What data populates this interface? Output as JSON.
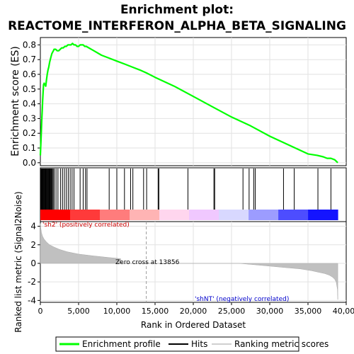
{
  "chart_data": [
    {
      "type": "line",
      "title": "Enrichment plot:",
      "subtitle": "REACTOME_INTERFERON_ALPHA_BETA_SIGNALING",
      "ylabel": "Enrichment score (ES)",
      "xlim": [
        0,
        40000
      ],
      "ylim": [
        -0.02,
        0.85
      ],
      "yticks": [
        0.0,
        0.1,
        0.2,
        0.3,
        0.4,
        0.5,
        0.6,
        0.7,
        0.8
      ],
      "grid": true,
      "series": [
        {
          "name": "Enrichment profile",
          "color": "#00ff00",
          "x": [
            0,
            60,
            120,
            180,
            240,
            300,
            360,
            420,
            500,
            600,
            700,
            800,
            900,
            1000,
            1100,
            1200,
            1300,
            1400,
            1500,
            1600,
            1700,
            1800,
            2000,
            2200,
            2400,
            2600,
            2800,
            3000,
            3200,
            3400,
            3600,
            3800,
            4000,
            4200,
            4400,
            4600,
            4800,
            5000,
            5200,
            5400,
            5600,
            5800,
            6000,
            7000,
            8000,
            9000,
            10000,
            11000,
            12000,
            13000,
            13856,
            15000,
            17500,
            20000,
            22500,
            25000,
            27500,
            30000,
            32500,
            35000,
            36200,
            37000,
            37500,
            38000,
            38500,
            38900
          ],
          "values": [
            0.05,
            0.12,
            0.2,
            0.28,
            0.35,
            0.42,
            0.48,
            0.53,
            0.54,
            0.53,
            0.52,
            0.56,
            0.6,
            0.63,
            0.65,
            0.68,
            0.7,
            0.72,
            0.74,
            0.75,
            0.76,
            0.77,
            0.77,
            0.76,
            0.76,
            0.77,
            0.78,
            0.78,
            0.79,
            0.79,
            0.8,
            0.8,
            0.8,
            0.81,
            0.8,
            0.8,
            0.79,
            0.79,
            0.8,
            0.8,
            0.8,
            0.79,
            0.79,
            0.76,
            0.73,
            0.71,
            0.69,
            0.67,
            0.65,
            0.63,
            0.61,
            0.58,
            0.52,
            0.45,
            0.38,
            0.31,
            0.25,
            0.18,
            0.12,
            0.06,
            0.05,
            0.04,
            0.03,
            0.03,
            0.02,
            0.0
          ]
        }
      ]
    },
    {
      "type": "hits",
      "hits_label": "Hits",
      "positions": [
        80,
        150,
        200,
        260,
        330,
        400,
        470,
        560,
        650,
        720,
        800,
        880,
        960,
        1050,
        1120,
        1200,
        1290,
        1380,
        1480,
        1560,
        1680,
        1820,
        2050,
        2300,
        2650,
        2900,
        3150,
        3400,
        3650,
        3900,
        4150,
        4400,
        5200,
        5600,
        5900,
        6100,
        9000,
        10000,
        11000,
        11800,
        12100,
        13500,
        13900,
        15400,
        15500,
        19300,
        22700,
        22800,
        26500,
        27300,
        27900,
        28100,
        31800,
        33200,
        36300,
        38000
      ],
      "rank_colors": [
        "#ff0000",
        "#ff3a3a",
        "#ff7c7c",
        "#ffb4b4",
        "#ffd6ee",
        "#f0c8ff",
        "#d8d8ff",
        "#9c9cff",
        "#4d4dff",
        "#1414ff"
      ]
    },
    {
      "type": "area",
      "ylabel": "Ranked list metric (Signal2Noise)",
      "xlabel": "Rank in Ordered Dataset",
      "xlim": [
        0,
        40000
      ],
      "ylim": [
        -4.2,
        4.5
      ],
      "yticks": [
        -4,
        -2,
        0,
        2,
        4
      ],
      "xticks": [
        0,
        5000,
        10000,
        15000,
        20000,
        25000,
        30000,
        35000,
        40000
      ],
      "xtick_labels": [
        "0",
        "5,000",
        "10,000",
        "15,000",
        "20,000",
        "25,000",
        "30,000",
        "35,000",
        "40,000"
      ],
      "grid": true,
      "label_pos": "'sh2' (positively correlated)",
      "label_neg": "'shNT' (negatively correlated)",
      "zero_cross_label": "Zero cross at 13856",
      "zero_cross": 13856,
      "series": [
        {
          "name": "Ranking metric scores",
          "x": [
            0,
            50,
            150,
            300,
            500,
            800,
            1200,
            1800,
            2500,
            3500,
            5000,
            7000,
            9000,
            10000,
            10500,
            10600,
            26000,
            28000,
            30000,
            32000,
            34000,
            35500,
            36500,
            37200,
            37800,
            38200,
            38500,
            38700,
            38850,
            38900
          ],
          "values": [
            4.3,
            3.9,
            3.3,
            2.9,
            2.6,
            2.3,
            2.0,
            1.75,
            1.5,
            1.25,
            1.0,
            0.8,
            0.62,
            0.55,
            0.5,
            0.0,
            0.0,
            -0.15,
            -0.3,
            -0.45,
            -0.6,
            -0.8,
            -0.98,
            -1.1,
            -1.28,
            -1.48,
            -1.72,
            -2.05,
            -2.8,
            -3.9
          ]
        }
      ]
    },
    {
      "type": "legend",
      "placement": "bottom",
      "items": [
        "Enrichment profile",
        "Hits",
        "Ranking metric scores"
      ]
    }
  ]
}
